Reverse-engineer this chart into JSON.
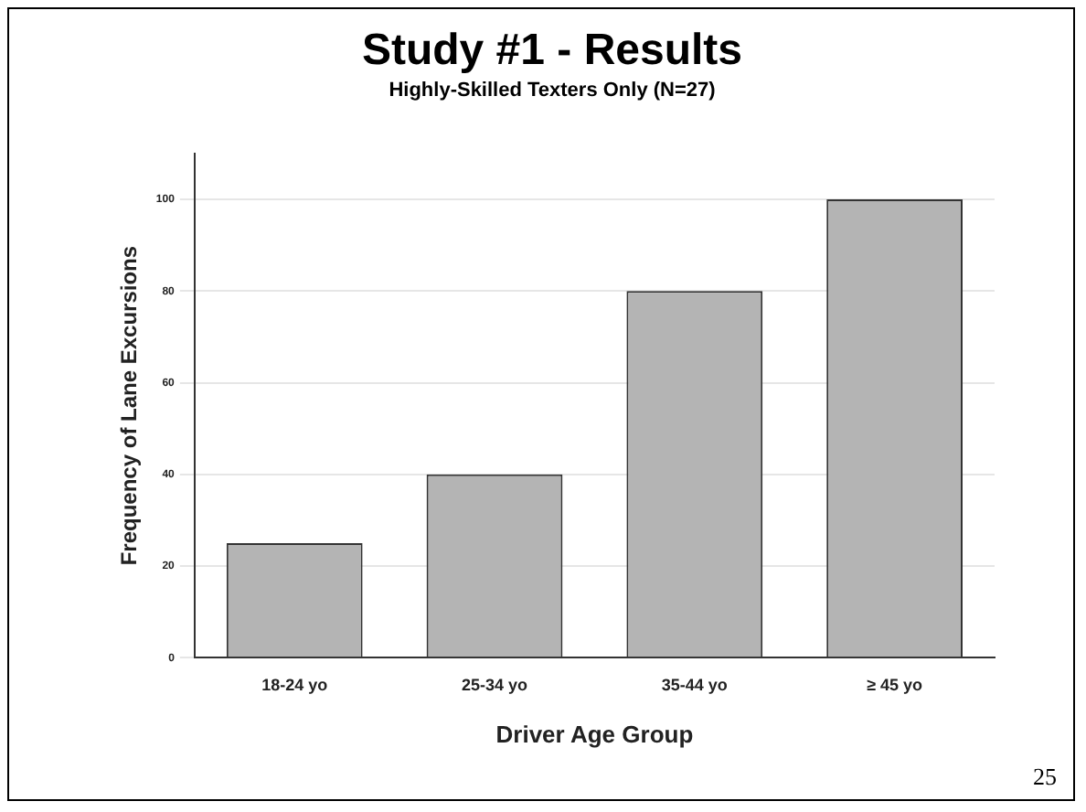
{
  "chart_data": {
    "type": "bar",
    "title": "Study #1 - Results",
    "subtitle": "Highly-Skilled Texters Only (N=27)",
    "categories": [
      "18-24 yo",
      "25-34 yo",
      "35-44 yo",
      "≥ 45 yo"
    ],
    "values": [
      25,
      40,
      80,
      100
    ],
    "color": "#b4b4b4",
    "xlabel": "Driver Age Group",
    "ylabel": "Frequency of Lane Excursions",
    "ylim": [
      0,
      110
    ],
    "yticks": [
      0,
      20,
      40,
      60,
      80,
      100
    ],
    "grid": "y",
    "legend": false,
    "annotations": [
      "25"
    ]
  }
}
